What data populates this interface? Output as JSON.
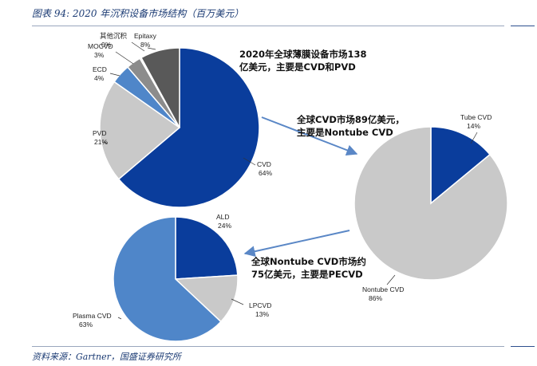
{
  "header": {
    "title": "图表 94: 2020 年沉积设备市场结构（百万美元）"
  },
  "footer": {
    "source": "资料来源：Gartner，国盛证券研究所"
  },
  "notes": {
    "main": [
      "2020年全球薄膜设备市场138",
      "亿美元，主要是CVD和PVD"
    ],
    "cvd": [
      "全球CVD市场89亿美元，",
      "主要是Nontube CVD"
    ],
    "nontube": [
      "全球Nontube CVD市场约",
      "75亿美元，主要是PECVD"
    ]
  },
  "colors": {
    "dark_blue": "#0a3d9c",
    "light_gray": "#c9c9c9",
    "mid_blue": "#4f86c9",
    "dark_gray": "#595959",
    "arrow": "#5a87c6"
  },
  "chart_data": [
    {
      "type": "pie",
      "title": "",
      "slices": [
        {
          "label": "CVD",
          "value": 64,
          "value_label": "64%",
          "color": "#0a3d9c"
        },
        {
          "label": "PVD",
          "value": 21,
          "value_label": "21%",
          "color": "#c9c9c9"
        },
        {
          "label": "ECD",
          "value": 4,
          "value_label": "4%",
          "color": "#4f86c9"
        },
        {
          "label": "MOCVD",
          "value": 3,
          "value_label": "3%",
          "color": "#8c8c8c"
        },
        {
          "label": "其他沉积",
          "value": 0.3,
          "value_label": "0%",
          "color": "#d9d9d9"
        },
        {
          "label": "Epitaxy",
          "value": 8,
          "value_label": "8%",
          "color": "#595959"
        }
      ]
    },
    {
      "type": "pie",
      "title": "",
      "slices": [
        {
          "label": "Tube CVD",
          "value": 14,
          "value_label": "14%",
          "color": "#0a3d9c"
        },
        {
          "label": "Nontube CVD",
          "value": 86,
          "value_label": "86%",
          "color": "#c9c9c9"
        }
      ]
    },
    {
      "type": "pie",
      "title": "",
      "slices": [
        {
          "label": "ALD",
          "value": 24,
          "value_label": "24%",
          "color": "#0a3d9c"
        },
        {
          "label": "LPCVD",
          "value": 13,
          "value_label": "13%",
          "color": "#c9c9c9"
        },
        {
          "label": "Plasma CVD",
          "value": 63,
          "value_label": "63%",
          "color": "#4f86c9"
        }
      ]
    }
  ]
}
